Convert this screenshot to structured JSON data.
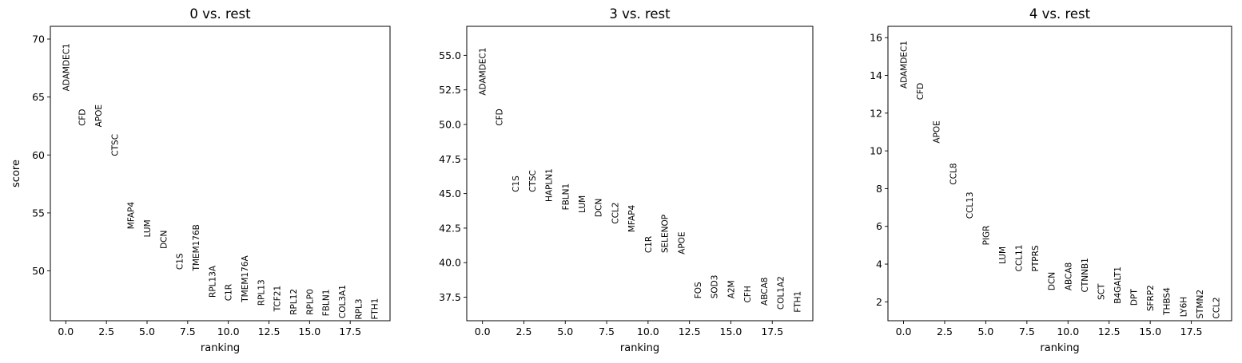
{
  "chart_data": [
    {
      "type": "scatter",
      "title": "0 vs. rest",
      "xlabel": "ranking",
      "ylabel": "score",
      "xlim": [
        -0.95,
        19.95
      ],
      "ylim": [
        45.7,
        71.1
      ],
      "xticks": [
        0,
        2.5,
        5,
        7.5,
        10,
        12.5,
        15,
        17.5
      ],
      "xticklabels": [
        "0.0",
        "2.5",
        "5.0",
        "7.5",
        "10.0",
        "12.5",
        "15.0",
        "17.5"
      ],
      "yticks": [
        50,
        55,
        60,
        65,
        70
      ],
      "yticklabels": [
        "50",
        "55",
        "60",
        "65",
        "70"
      ],
      "grid": false,
      "points": [
        {
          "rank": 0,
          "gene": "ADAMDEC1",
          "score": 65.5
        },
        {
          "rank": 1,
          "gene": "CFD",
          "score": 62.5
        },
        {
          "rank": 2,
          "gene": "APOE",
          "score": 62.4
        },
        {
          "rank": 3,
          "gene": "CTSC",
          "score": 59.9
        },
        {
          "rank": 4,
          "gene": "MFAP4",
          "score": 53.6
        },
        {
          "rank": 5,
          "gene": "LUM",
          "score": 52.9
        },
        {
          "rank": 6,
          "gene": "DCN",
          "score": 51.9
        },
        {
          "rank": 7,
          "gene": "C1S",
          "score": 50.1
        },
        {
          "rank": 8,
          "gene": "TMEM176B",
          "score": 50.0
        },
        {
          "rank": 9,
          "gene": "RPL13A",
          "score": 47.7
        },
        {
          "rank": 10,
          "gene": "C1R",
          "score": 47.4
        },
        {
          "rank": 11,
          "gene": "TMEM176A",
          "score": 47.3
        },
        {
          "rank": 12,
          "gene": "RPL13",
          "score": 47.0
        },
        {
          "rank": 13,
          "gene": "TCF21",
          "score": 46.5
        },
        {
          "rank": 14,
          "gene": "RPL12",
          "score": 46.2
        },
        {
          "rank": 15,
          "gene": "RPLP0",
          "score": 46.2
        },
        {
          "rank": 16,
          "gene": "FBLN1",
          "score": 46.1
        },
        {
          "rank": 17,
          "gene": "COL3A1",
          "score": 45.9
        },
        {
          "rank": 18,
          "gene": "RPL3",
          "score": 45.8
        },
        {
          "rank": 19,
          "gene": "FTH1",
          "score": 45.8
        }
      ]
    },
    {
      "type": "scatter",
      "title": "3 vs. rest",
      "xlabel": "ranking",
      "ylabel": "",
      "xlim": [
        -0.95,
        19.95
      ],
      "ylim": [
        35.8,
        57.1
      ],
      "xticks": [
        0,
        2.5,
        5,
        7.5,
        10,
        12.5,
        15,
        17.5
      ],
      "xticklabels": [
        "0.0",
        "2.5",
        "5.0",
        "7.5",
        "10.0",
        "12.5",
        "15.0",
        "17.5"
      ],
      "yticks": [
        37.5,
        40,
        42.5,
        45,
        47.5,
        50,
        52.5,
        55
      ],
      "yticklabels": [
        "37.5",
        "40.0",
        "42.5",
        "45.0",
        "47.5",
        "50.0",
        "52.5",
        "55.0"
      ],
      "grid": false,
      "points": [
        {
          "rank": 0,
          "gene": "ADAMDEC1",
          "score": 52.1
        },
        {
          "rank": 1,
          "gene": "CFD",
          "score": 49.9
        },
        {
          "rank": 2,
          "gene": "C1S",
          "score": 45.1
        },
        {
          "rank": 3,
          "gene": "CTSC",
          "score": 45.1
        },
        {
          "rank": 4,
          "gene": "HAPLN1",
          "score": 44.4
        },
        {
          "rank": 5,
          "gene": "FBLN1",
          "score": 43.8
        },
        {
          "rank": 6,
          "gene": "LUM",
          "score": 43.6
        },
        {
          "rank": 7,
          "gene": "DCN",
          "score": 43.3
        },
        {
          "rank": 8,
          "gene": "CCL2",
          "score": 42.8
        },
        {
          "rank": 9,
          "gene": "MFAP4",
          "score": 42.2
        },
        {
          "rank": 10,
          "gene": "C1R",
          "score": 40.7
        },
        {
          "rank": 11,
          "gene": "SELENOP",
          "score": 40.7
        },
        {
          "rank": 12,
          "gene": "APOE",
          "score": 40.6
        },
        {
          "rank": 13,
          "gene": "FOS",
          "score": 37.4
        },
        {
          "rank": 14,
          "gene": "SOD3",
          "score": 37.4
        },
        {
          "rank": 15,
          "gene": "A2M",
          "score": 37.4
        },
        {
          "rank": 16,
          "gene": "CFH",
          "score": 37.1
        },
        {
          "rank": 17,
          "gene": "ABCA8",
          "score": 36.9
        },
        {
          "rank": 18,
          "gene": "COL1A2",
          "score": 36.6
        },
        {
          "rank": 19,
          "gene": "FTH1",
          "score": 36.4
        }
      ]
    },
    {
      "type": "scatter",
      "title": "4 vs. rest",
      "xlabel": "ranking",
      "ylabel": "",
      "xlim": [
        -0.95,
        19.95
      ],
      "ylim": [
        1.0,
        16.6
      ],
      "xticks": [
        0,
        2.5,
        5,
        7.5,
        10,
        12.5,
        15,
        17.5
      ],
      "xticklabels": [
        "0.0",
        "2.5",
        "5.0",
        "7.5",
        "10.0",
        "12.5",
        "15.0",
        "17.5"
      ],
      "yticks": [
        2,
        4,
        6,
        8,
        10,
        12,
        14,
        16
      ],
      "yticklabels": [
        "2",
        "4",
        "6",
        "8",
        "10",
        "12",
        "14",
        "16"
      ],
      "grid": false,
      "points": [
        {
          "rank": 0,
          "gene": "ADAMDEC1",
          "score": 13.3
        },
        {
          "rank": 1,
          "gene": "CFD",
          "score": 12.7
        },
        {
          "rank": 2,
          "gene": "APOE",
          "score": 10.4
        },
        {
          "rank": 3,
          "gene": "CCL8",
          "score": 8.2
        },
        {
          "rank": 4,
          "gene": "CCL13",
          "score": 6.4
        },
        {
          "rank": 5,
          "gene": "PIGR",
          "score": 5.0
        },
        {
          "rank": 6,
          "gene": "LUM",
          "score": 4.0
        },
        {
          "rank": 7,
          "gene": "CCL11",
          "score": 3.6
        },
        {
          "rank": 8,
          "gene": "PTPRS",
          "score": 3.6
        },
        {
          "rank": 9,
          "gene": "DCN",
          "score": 2.6
        },
        {
          "rank": 10,
          "gene": "ABCA8",
          "score": 2.6
        },
        {
          "rank": 11,
          "gene": "CTNNB1",
          "score": 2.5
        },
        {
          "rank": 12,
          "gene": "SCT",
          "score": 2.1
        },
        {
          "rank": 13,
          "gene": "B4GALT1",
          "score": 1.9
        },
        {
          "rank": 14,
          "gene": "DPT",
          "score": 1.8
        },
        {
          "rank": 15,
          "gene": "SFRP2",
          "score": 1.5
        },
        {
          "rank": 16,
          "gene": "THBS4",
          "score": 1.3
        },
        {
          "rank": 17,
          "gene": "LY6H",
          "score": 1.2
        },
        {
          "rank": 18,
          "gene": "STMN2",
          "score": 1.1
        },
        {
          "rank": 19,
          "gene": "CCL2",
          "score": 1.1
        }
      ]
    }
  ]
}
